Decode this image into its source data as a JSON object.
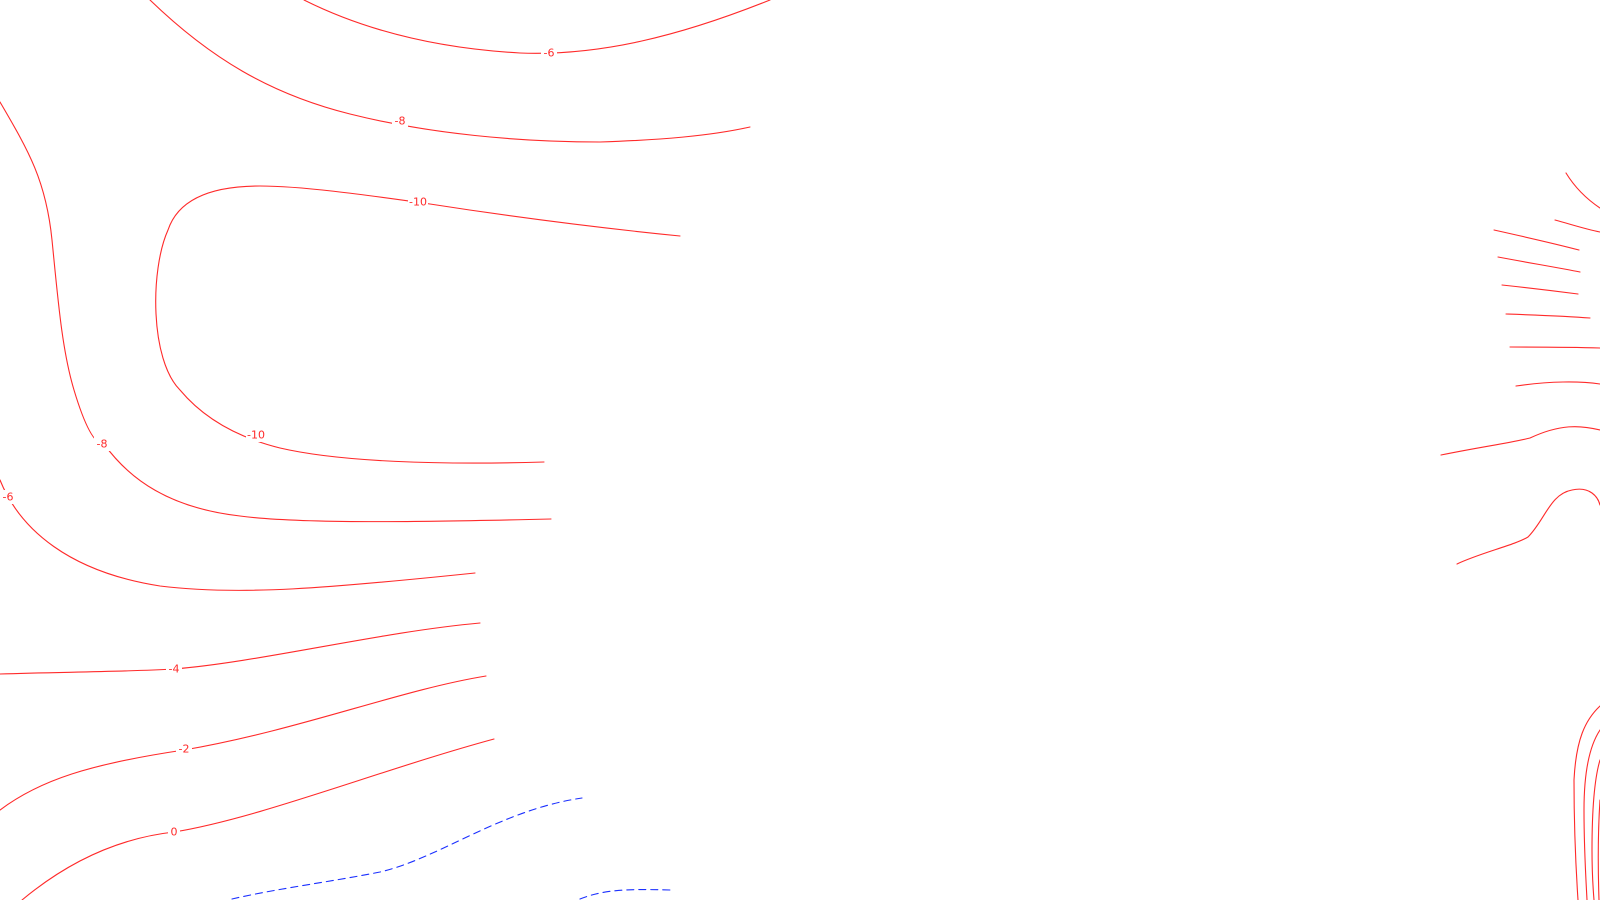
{
  "map": {
    "colors": {
      "background": "#ffffff",
      "contour_red": "#ff2a2a",
      "contour_blue_dashed": "#1a2fff"
    },
    "contour_labels": [
      "-6",
      "-8",
      "-10",
      "-10",
      "-8",
      "-6",
      "-4",
      "-2",
      "0"
    ]
  }
}
